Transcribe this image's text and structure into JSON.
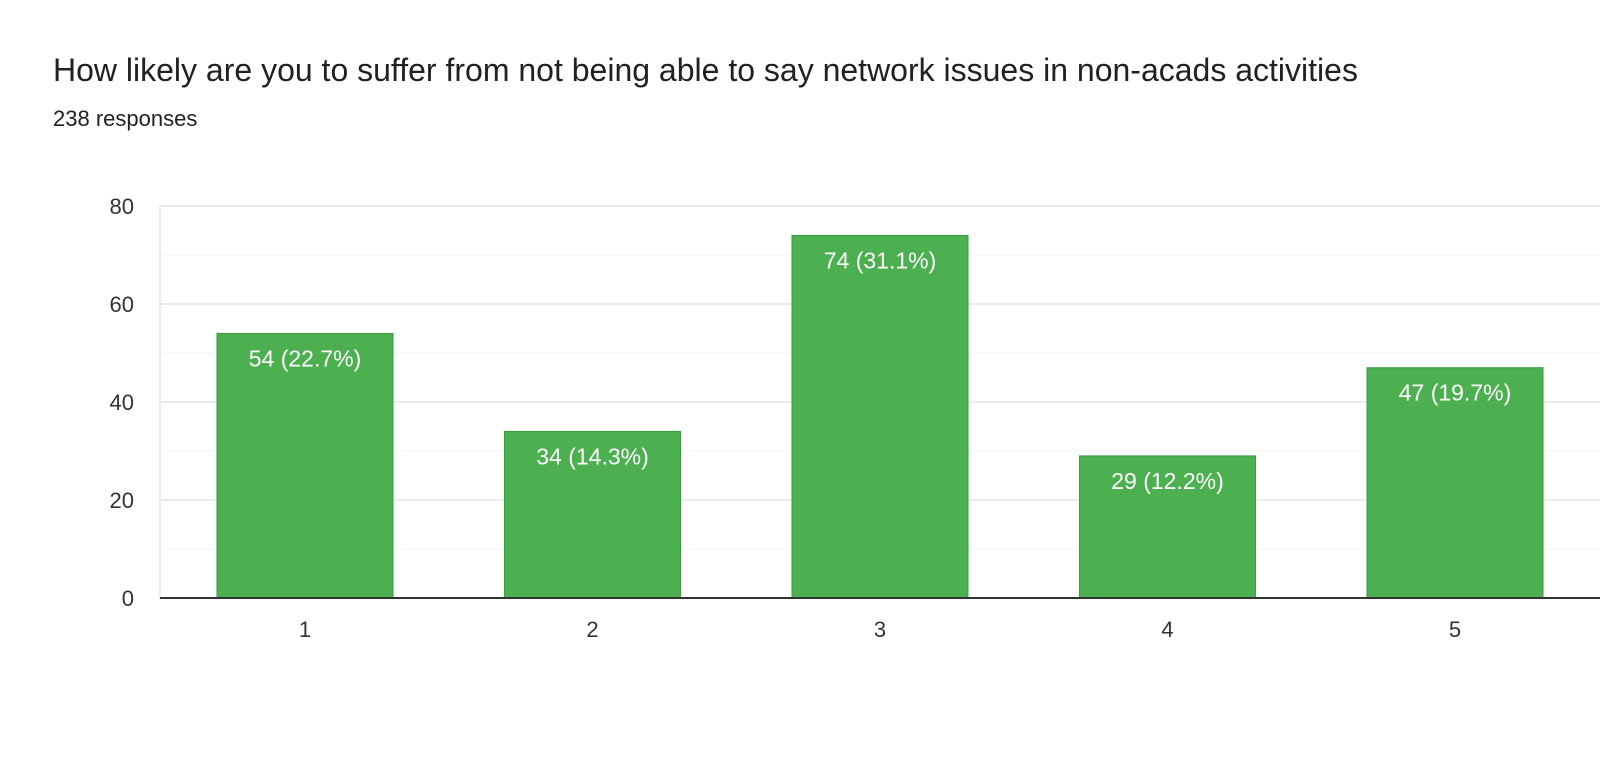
{
  "header": {
    "title": "How likely are you to suffer from not being able to say network issues in non-acads activities",
    "subtitle": "238 responses"
  },
  "colors": {
    "bar": "#4caf50",
    "bar_stroke": "#3d9a40",
    "grid": "#ebebeb",
    "grid_minor": "#f3f3f3",
    "axis": "#333333"
  },
  "chart_data": {
    "type": "bar",
    "title": "How likely are you to suffer from not being able to say network issues in non-acads activities",
    "subtitle": "238 responses",
    "categories": [
      "1",
      "2",
      "3",
      "4",
      "5"
    ],
    "values": [
      54,
      34,
      74,
      29,
      47
    ],
    "data_labels": [
      "54 (22.7%)",
      "34 (14.3%)",
      "74 (31.1%)",
      "29 (12.2%)",
      "47 (19.7%)"
    ],
    "ylim": [
      0,
      80
    ],
    "y_ticks": [
      0,
      20,
      40,
      60,
      80
    ],
    "xlabel": "",
    "ylabel": "",
    "grid": true,
    "legend": "none"
  }
}
